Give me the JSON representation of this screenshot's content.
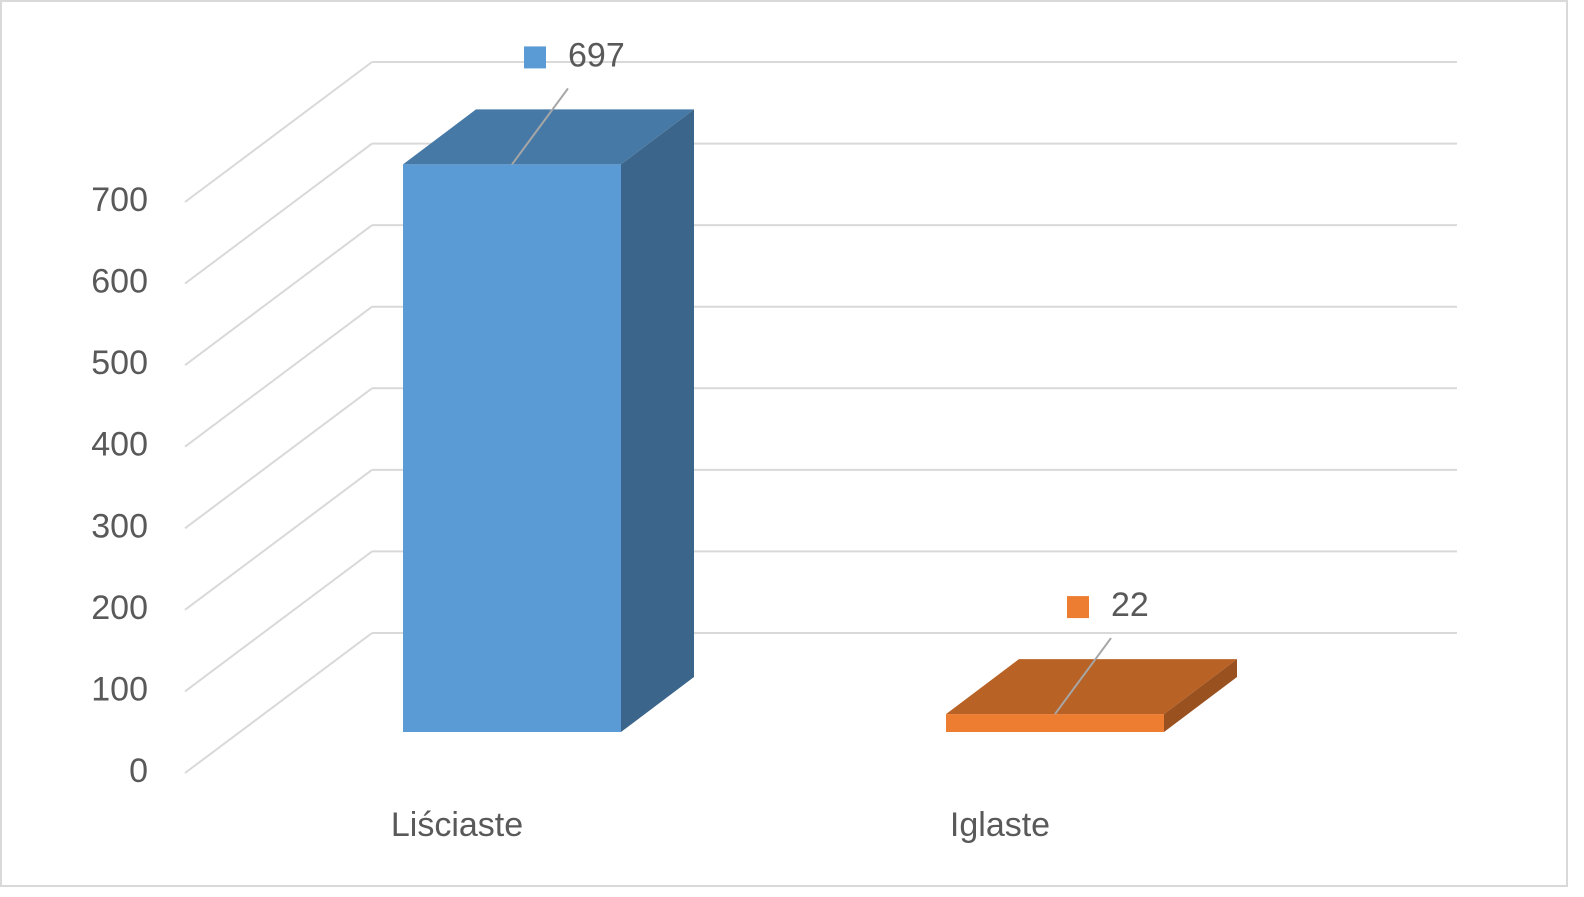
{
  "chart_data": {
    "type": "bar3d",
    "categories": [
      "Liściaste",
      "Iglaste"
    ],
    "values": [
      697,
      22
    ],
    "colors": [
      "#5b9bd5",
      "#ed7d31"
    ],
    "ylim": [
      0,
      700
    ],
    "yticks": [
      0,
      100,
      200,
      300,
      400,
      500,
      600,
      700
    ],
    "grid": true
  }
}
